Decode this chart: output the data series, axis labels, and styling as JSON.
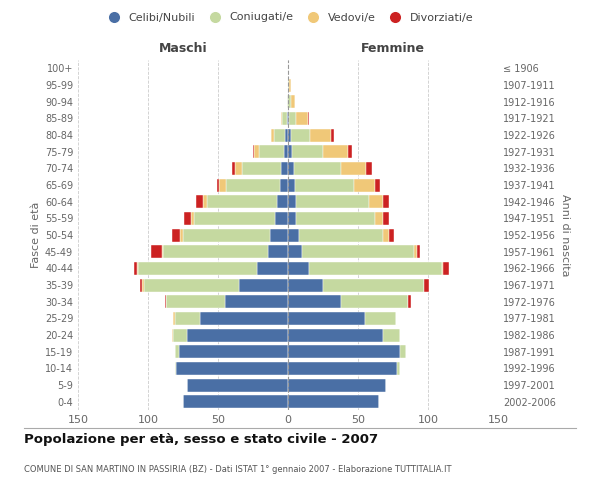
{
  "age_groups": [
    "0-4",
    "5-9",
    "10-14",
    "15-19",
    "20-24",
    "25-29",
    "30-34",
    "35-39",
    "40-44",
    "45-49",
    "50-54",
    "55-59",
    "60-64",
    "65-69",
    "70-74",
    "75-79",
    "80-84",
    "85-89",
    "90-94",
    "95-99",
    "100+"
  ],
  "birth_years": [
    "2002-2006",
    "1997-2001",
    "1992-1996",
    "1987-1991",
    "1982-1986",
    "1977-1981",
    "1972-1976",
    "1967-1971",
    "1962-1966",
    "1957-1961",
    "1952-1956",
    "1947-1951",
    "1942-1946",
    "1937-1941",
    "1932-1936",
    "1927-1931",
    "1922-1926",
    "1917-1921",
    "1912-1916",
    "1907-1911",
    "≤ 1906"
  ],
  "male_celibi": [
    75,
    72,
    80,
    78,
    72,
    63,
    45,
    35,
    22,
    14,
    13,
    9,
    8,
    6,
    5,
    3,
    2,
    1,
    0,
    0,
    0
  ],
  "male_coniugati": [
    0,
    0,
    1,
    3,
    10,
    18,
    42,
    68,
    85,
    75,
    62,
    58,
    50,
    38,
    28,
    18,
    8,
    3,
    1,
    0,
    0
  ],
  "male_vedovi": [
    0,
    0,
    0,
    0,
    1,
    1,
    0,
    1,
    1,
    1,
    2,
    2,
    3,
    5,
    5,
    3,
    2,
    1,
    0,
    0,
    0
  ],
  "male_divorziati": [
    0,
    0,
    0,
    0,
    0,
    0,
    1,
    2,
    2,
    8,
    6,
    5,
    5,
    2,
    2,
    1,
    0,
    0,
    0,
    0,
    0
  ],
  "female_nubili": [
    65,
    70,
    78,
    80,
    68,
    55,
    38,
    25,
    15,
    10,
    8,
    6,
    6,
    5,
    4,
    3,
    2,
    1,
    0,
    0,
    0
  ],
  "female_coniugate": [
    0,
    0,
    2,
    4,
    12,
    22,
    48,
    72,
    95,
    80,
    60,
    56,
    52,
    42,
    34,
    22,
    14,
    5,
    2,
    1,
    0
  ],
  "female_vedove": [
    0,
    0,
    0,
    0,
    0,
    0,
    0,
    0,
    1,
    2,
    4,
    6,
    10,
    15,
    18,
    18,
    15,
    8,
    3,
    1,
    0
  ],
  "female_divorziate": [
    0,
    0,
    0,
    0,
    0,
    0,
    2,
    4,
    4,
    2,
    4,
    4,
    4,
    4,
    4,
    3,
    2,
    1,
    0,
    0,
    0
  ],
  "colors": {
    "celibi_nubili": "#4a6fa5",
    "coniugati": "#c5d9a0",
    "vedovi": "#f0c878",
    "divorziati": "#cc2222"
  },
  "title": "Popolazione per età, sesso e stato civile - 2007",
  "subtitle": "COMUNE DI SAN MARTINO IN PASSIRIA (BZ) - Dati ISTAT 1° gennaio 2007 - Elaborazione TUTTITALIA.IT",
  "xlabel_left": "Maschi",
  "xlabel_right": "Femmine",
  "ylabel_left": "Fasce di età",
  "ylabel_right": "Anni di nascita",
  "xlim": 150,
  "legend_labels": [
    "Celibi/Nubili",
    "Coniugati/e",
    "Vedovi/e",
    "Divorziati/e"
  ],
  "background_color": "#ffffff"
}
